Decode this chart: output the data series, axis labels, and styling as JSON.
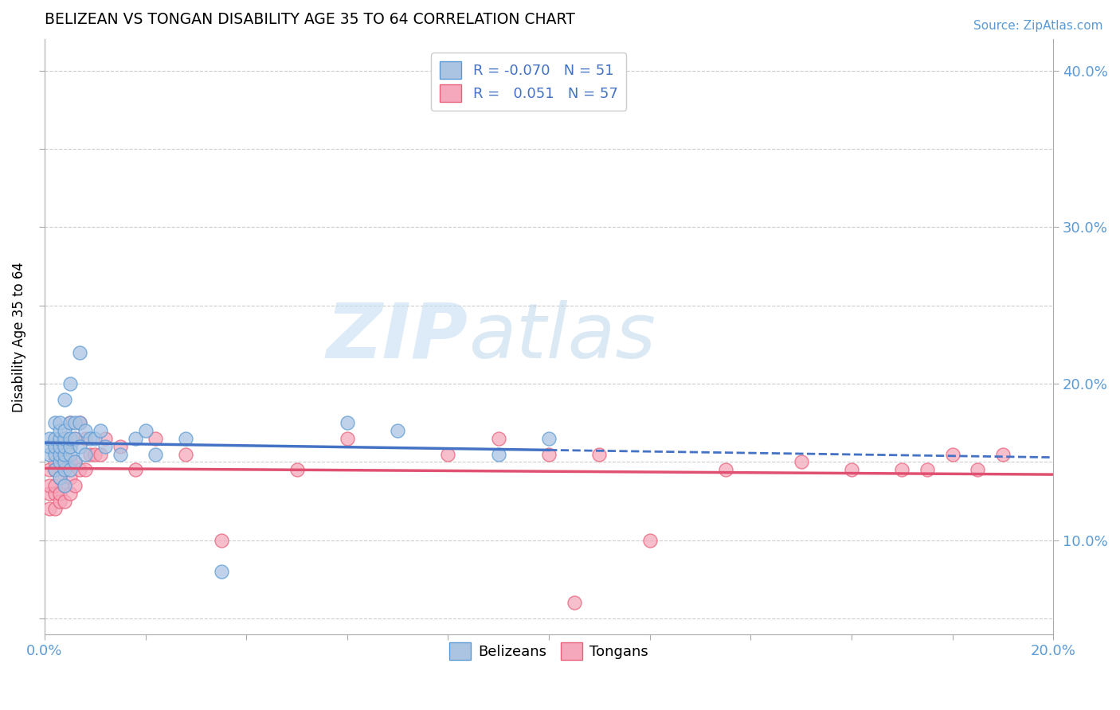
{
  "title": "BELIZEAN VS TONGAN DISABILITY AGE 35 TO 64 CORRELATION CHART",
  "source": "Source: ZipAtlas.com",
  "ylabel": "Disability Age 35 to 64",
  "xlim": [
    0.0,
    0.2
  ],
  "ylim": [
    0.04,
    0.42
  ],
  "xticks": [
    0.0,
    0.02,
    0.04,
    0.06,
    0.08,
    0.1,
    0.12,
    0.14,
    0.16,
    0.18,
    0.2
  ],
  "xtick_labels": [
    "0.0%",
    "",
    "",
    "",
    "",
    "",
    "",
    "",
    "",
    "",
    "20.0%"
  ],
  "yticks_left": [
    0.05,
    0.1,
    0.15,
    0.2,
    0.25,
    0.3,
    0.35,
    0.4
  ],
  "ytick_labels_left": [
    "",
    "",
    "",
    "",
    "",
    "",
    "",
    ""
  ],
  "yticks_right": [
    0.1,
    0.2,
    0.3,
    0.4
  ],
  "ytick_labels_right": [
    "10.0%",
    "20.0%",
    "30.0%",
    "40.0%"
  ],
  "belizean_R": "-0.070",
  "belizean_N": "51",
  "tongan_R": "0.051",
  "tongan_N": "57",
  "belizean_color": "#aac4e2",
  "tongan_color": "#f5a8bc",
  "belizean_edge_color": "#5b9bd5",
  "tongan_edge_color": "#e8607a",
  "belizean_line_color": "#4472c4",
  "tongan_line_color": "#e05070",
  "watermark_zip": "ZIP",
  "watermark_atlas": "atlas",
  "grid_color": "#cccccc",
  "belizean_x": [
    0.001,
    0.001,
    0.001,
    0.002,
    0.002,
    0.002,
    0.002,
    0.002,
    0.003,
    0.003,
    0.003,
    0.003,
    0.003,
    0.003,
    0.003,
    0.004,
    0.004,
    0.004,
    0.004,
    0.004,
    0.004,
    0.004,
    0.004,
    0.005,
    0.005,
    0.005,
    0.005,
    0.005,
    0.005,
    0.006,
    0.006,
    0.006,
    0.007,
    0.007,
    0.007,
    0.008,
    0.008,
    0.009,
    0.01,
    0.011,
    0.012,
    0.015,
    0.018,
    0.02,
    0.022,
    0.028,
    0.035,
    0.06,
    0.07,
    0.09,
    0.1
  ],
  "belizean_y": [
    0.155,
    0.16,
    0.165,
    0.145,
    0.155,
    0.16,
    0.165,
    0.175,
    0.14,
    0.15,
    0.155,
    0.16,
    0.165,
    0.17,
    0.175,
    0.135,
    0.145,
    0.15,
    0.155,
    0.16,
    0.165,
    0.17,
    0.19,
    0.145,
    0.155,
    0.16,
    0.165,
    0.175,
    0.2,
    0.15,
    0.165,
    0.175,
    0.16,
    0.175,
    0.22,
    0.155,
    0.17,
    0.165,
    0.165,
    0.17,
    0.16,
    0.155,
    0.165,
    0.17,
    0.155,
    0.165,
    0.08,
    0.175,
    0.17,
    0.155,
    0.165
  ],
  "tongan_x": [
    0.001,
    0.001,
    0.001,
    0.001,
    0.002,
    0.002,
    0.002,
    0.002,
    0.002,
    0.002,
    0.003,
    0.003,
    0.003,
    0.003,
    0.003,
    0.004,
    0.004,
    0.004,
    0.004,
    0.004,
    0.005,
    0.005,
    0.005,
    0.005,
    0.005,
    0.006,
    0.006,
    0.006,
    0.007,
    0.007,
    0.008,
    0.008,
    0.009,
    0.01,
    0.011,
    0.012,
    0.015,
    0.018,
    0.022,
    0.028,
    0.035,
    0.05,
    0.06,
    0.08,
    0.09,
    0.1,
    0.105,
    0.11,
    0.12,
    0.135,
    0.15,
    0.16,
    0.17,
    0.175,
    0.18,
    0.185,
    0.19
  ],
  "tongan_y": [
    0.12,
    0.13,
    0.135,
    0.145,
    0.12,
    0.13,
    0.135,
    0.145,
    0.15,
    0.16,
    0.125,
    0.13,
    0.14,
    0.15,
    0.16,
    0.125,
    0.135,
    0.145,
    0.155,
    0.165,
    0.13,
    0.14,
    0.15,
    0.16,
    0.175,
    0.135,
    0.15,
    0.165,
    0.145,
    0.175,
    0.145,
    0.165,
    0.155,
    0.155,
    0.155,
    0.165,
    0.16,
    0.145,
    0.165,
    0.155,
    0.1,
    0.145,
    0.165,
    0.155,
    0.165,
    0.155,
    0.06,
    0.155,
    0.1,
    0.145,
    0.15,
    0.145,
    0.145,
    0.145,
    0.155,
    0.145,
    0.155
  ],
  "solid_line_end_x": 0.1,
  "line_start_x": 0.0,
  "line_end_x": 0.2
}
